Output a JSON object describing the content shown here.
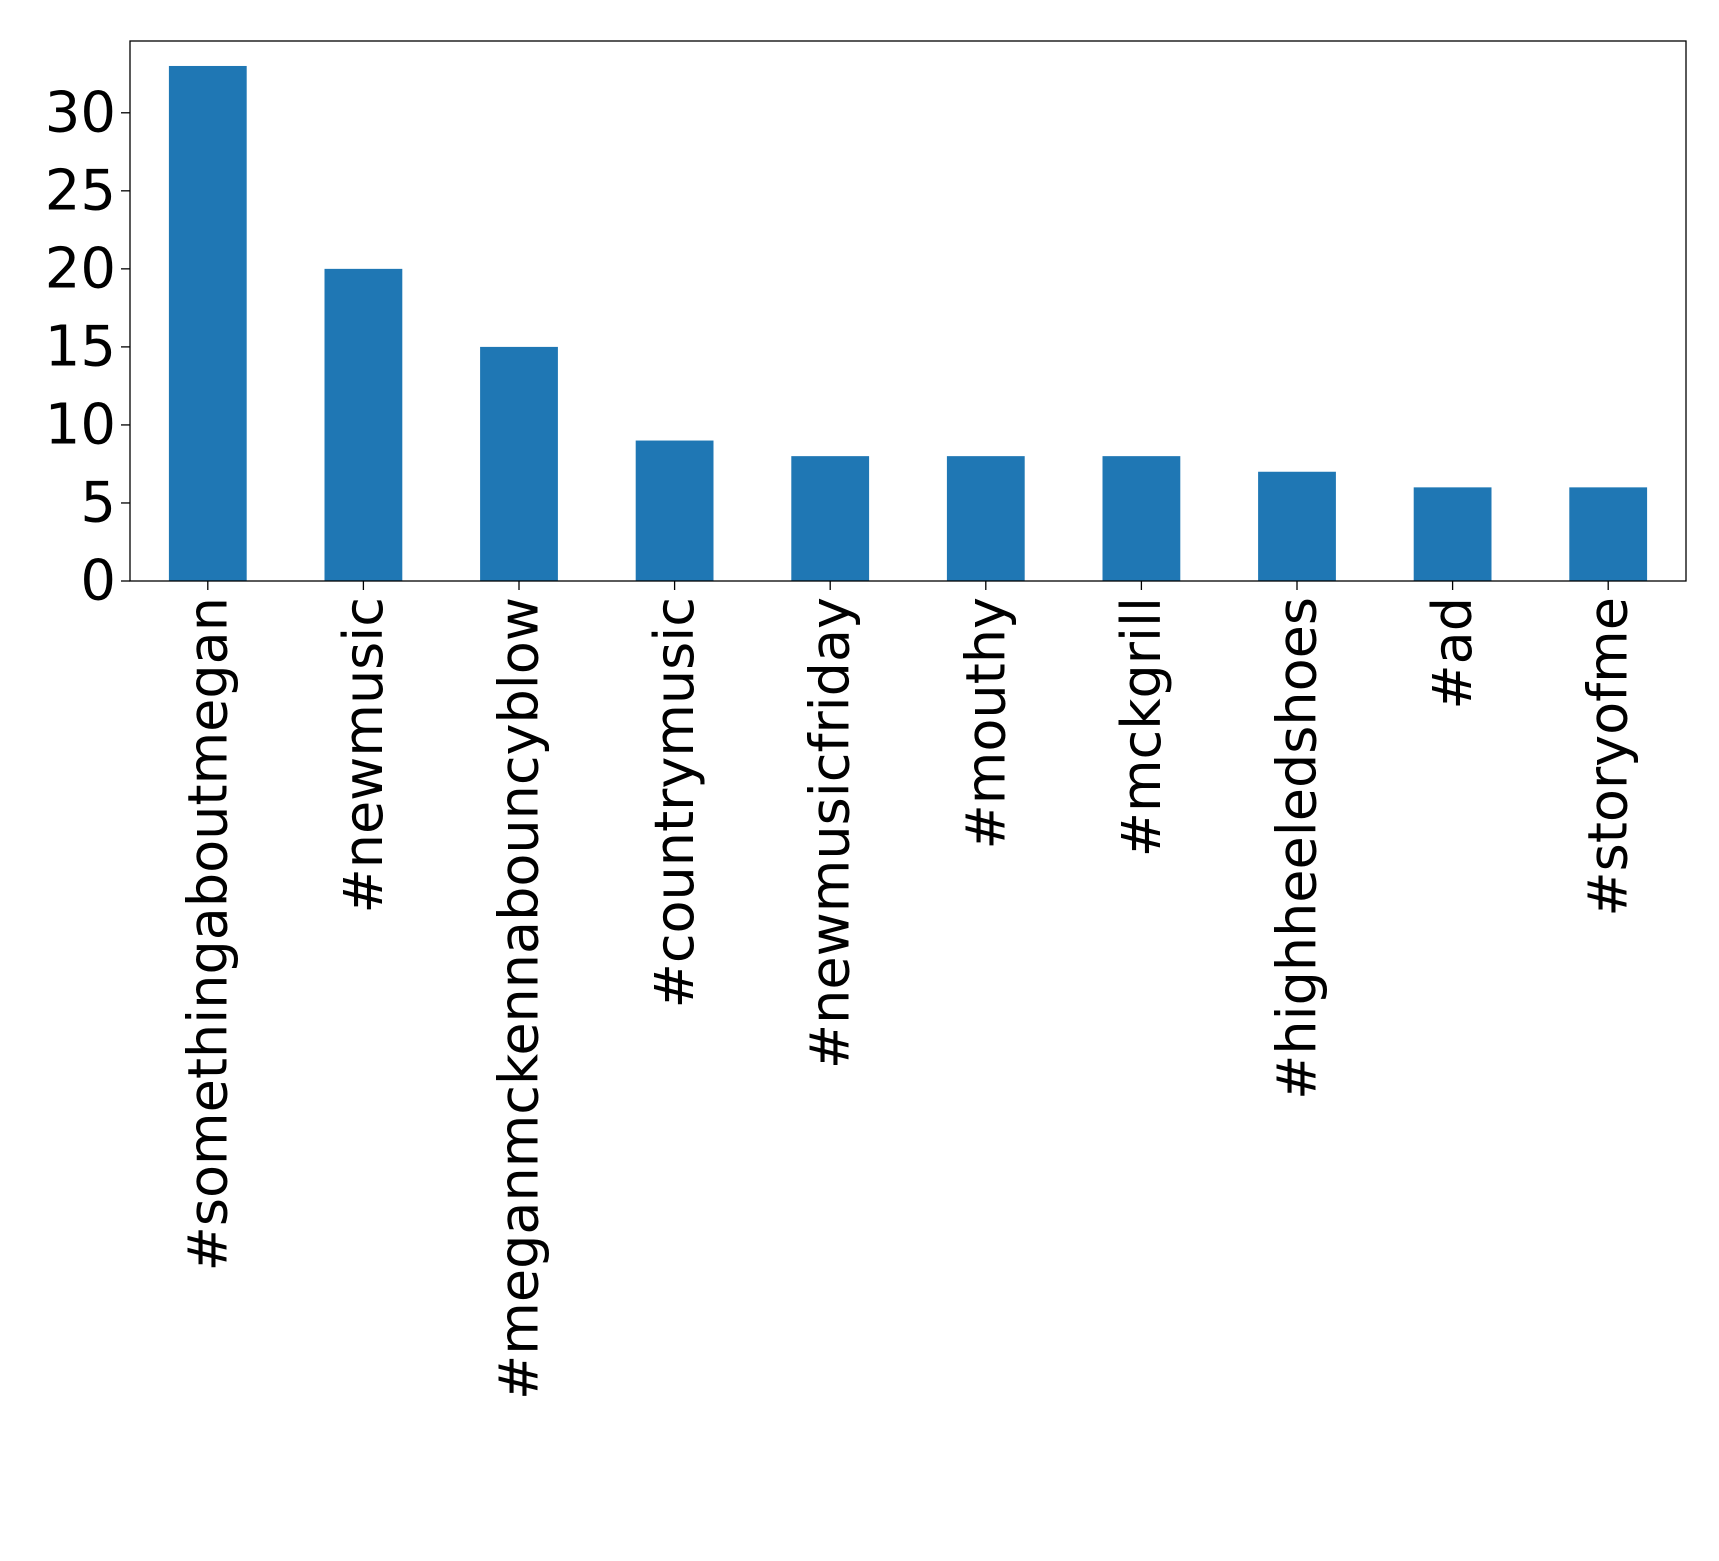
{
  "chart_data": {
    "type": "bar",
    "title": "",
    "xlabel": "",
    "ylabel": "",
    "categories": [
      "#somethingaboutmegan",
      "#newmusic",
      "#meganmckennabouncyblow",
      "#countrymusic",
      "#newmusicfriday",
      "#mouthy",
      "#mckgrill",
      "#highheeledshoes",
      "#ad",
      "#storyofme"
    ],
    "values": [
      33,
      20,
      15,
      9,
      8,
      8,
      8,
      7,
      6,
      6
    ],
    "ylim": [
      0,
      34.6
    ],
    "yticks": [
      0,
      5,
      10,
      15,
      20,
      25,
      30
    ],
    "grid": false,
    "legend": "none",
    "bar_color": "#1f77b4"
  }
}
